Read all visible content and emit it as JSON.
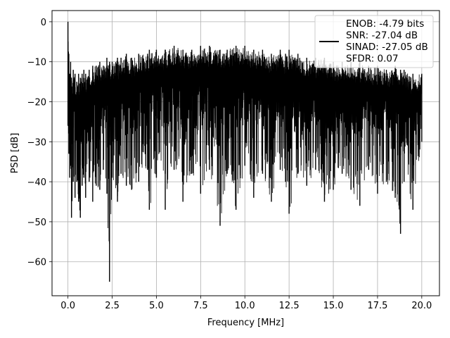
{
  "chart_data": {
    "type": "line",
    "xlabel": "Frequency [MHz]",
    "ylabel": "PSD [dB]",
    "xlim": [
      -0.9,
      21.0
    ],
    "ylim": [
      -68.5,
      2.8
    ],
    "xticks": [
      0.0,
      2.5,
      5.0,
      7.5,
      10.0,
      12.5,
      15.0,
      17.5,
      20.0
    ],
    "xtick_labels": [
      "0.0",
      "2.5",
      "5.0",
      "7.5",
      "10.0",
      "12.5",
      "15.0",
      "17.5",
      "20.0"
    ],
    "yticks": [
      0,
      -10,
      -20,
      -30,
      -40,
      -50,
      -60
    ],
    "ytick_labels": [
      "0",
      "−10",
      "−20",
      "−30",
      "−40",
      "−50",
      "−60"
    ],
    "grid": true,
    "legend_placement": "top-right",
    "colors": {
      "line": "#000000",
      "grid": "#b0b0b0"
    },
    "legend_lines": [
      "ENOB: -4.79 bits",
      "SNR: -27.04 dB",
      "SINAD: -27.05 dB",
      "SFDR: 0.07"
    ],
    "series": [
      {
        "x": [
          0.0,
          0.05,
          0.1,
          0.15,
          0.2,
          0.3,
          0.4,
          0.5,
          0.6,
          0.7,
          0.8,
          0.9,
          1.0,
          1.2,
          1.4,
          1.6,
          1.8,
          2.0,
          2.2,
          2.35,
          2.5,
          2.8,
          3.0,
          3.3,
          3.6,
          4.0,
          4.5,
          4.6,
          5.0,
          5.5,
          5.5,
          6.0,
          6.5,
          7.0,
          7.5,
          8.0,
          8.6,
          9.0,
          9.5,
          10.0,
          10.5,
          11.0,
          11.5,
          12.0,
          12.3,
          12.5,
          13.0,
          13.5,
          14.0,
          14.5,
          15.0,
          15.5,
          16.0,
          16.5,
          17.0,
          17.5,
          18.0,
          18.5,
          18.8,
          19.0,
          19.5,
          20.0
        ],
        "upper": [
          0.0,
          -8,
          -13,
          -10,
          -14,
          -12,
          -13,
          -15,
          -13,
          -14,
          -13,
          -12,
          -13,
          -12,
          -11,
          -11,
          -10,
          -11,
          -9,
          -10,
          -10,
          -9,
          -9,
          -8,
          -9,
          -8,
          -8,
          -7,
          -7,
          -7,
          -7,
          -6,
          -7,
          -7,
          -6,
          -6,
          -7,
          -7,
          -6,
          -6,
          -7,
          -7,
          -8,
          -7,
          -8,
          -7,
          -8,
          -9,
          -9,
          -9,
          -10,
          -10,
          -10,
          -10,
          -11,
          -11,
          -12,
          -11,
          -12,
          -12,
          -13,
          -13
        ],
        "lower": [
          -26,
          -33,
          -39,
          -36,
          -49,
          -40,
          -44,
          -40,
          -45,
          -49,
          -41,
          -39,
          -44,
          -40,
          -45,
          -41,
          -42,
          -37,
          -43,
          -65,
          -39,
          -45,
          -38,
          -41,
          -42,
          -40,
          -37,
          -47,
          -39,
          -38,
          -47,
          -37,
          -45,
          -38,
          -43,
          -37,
          -51,
          -38,
          -47,
          -36,
          -44,
          -38,
          -45,
          -37,
          -40,
          -48,
          -38,
          -41,
          -37,
          -45,
          -42,
          -38,
          -42,
          -46,
          -37,
          -43,
          -40,
          -44,
          -53,
          -40,
          -47,
          -30
        ]
      }
    ]
  }
}
